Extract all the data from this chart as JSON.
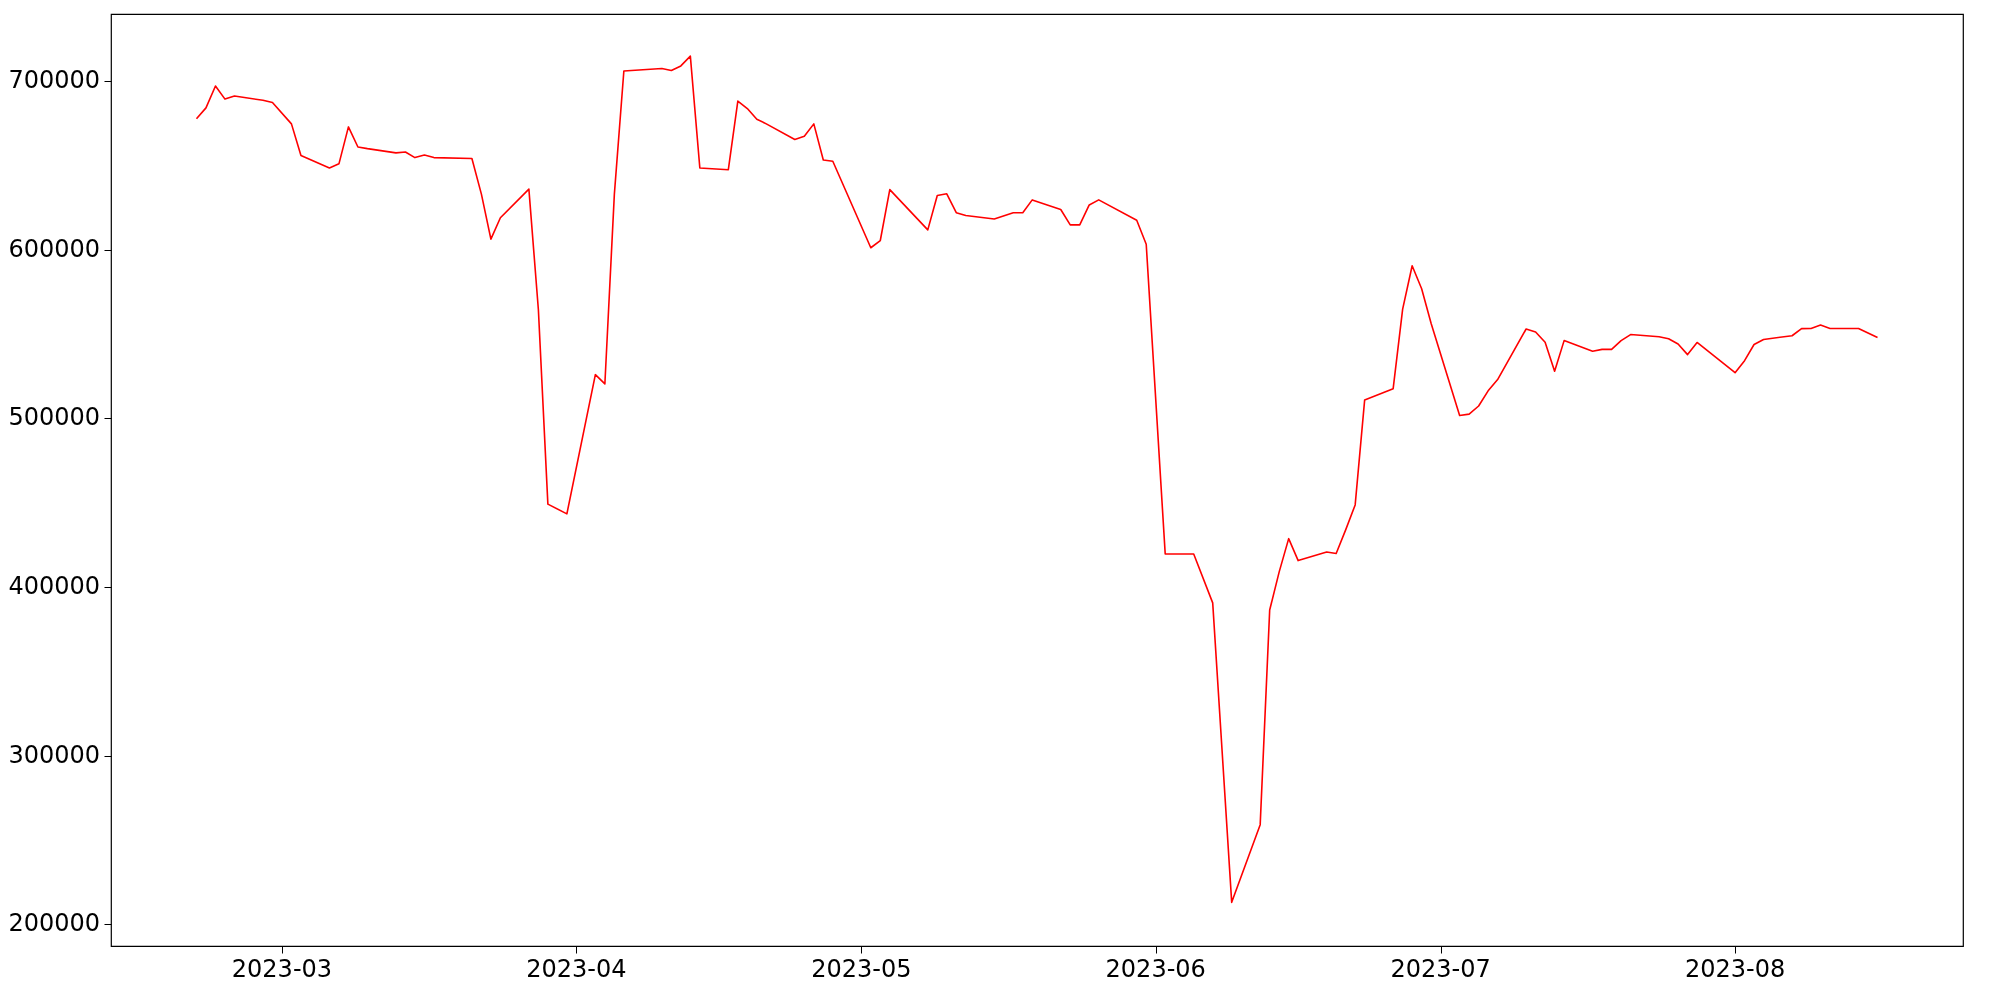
{
  "chart_data": {
    "type": "line",
    "x": [
      "2023-02-20",
      "2023-02-21",
      "2023-02-22",
      "2023-02-23",
      "2023-02-24",
      "2023-02-27",
      "2023-02-28",
      "2023-03-02",
      "2023-03-03",
      "2023-03-06",
      "2023-03-07",
      "2023-03-08",
      "2023-03-09",
      "2023-03-10",
      "2023-03-13",
      "2023-03-14",
      "2023-03-15",
      "2023-03-16",
      "2023-03-17",
      "2023-03-21",
      "2023-03-22",
      "2023-03-23",
      "2023-03-24",
      "2023-03-27",
      "2023-03-28",
      "2023-03-29",
      "2023-03-31",
      "2023-04-03",
      "2023-04-04",
      "2023-04-05",
      "2023-04-06",
      "2023-04-10",
      "2023-04-11",
      "2023-04-12",
      "2023-04-13",
      "2023-04-14",
      "2023-04-17",
      "2023-04-18",
      "2023-04-19",
      "2023-04-20",
      "2023-04-21",
      "2023-04-24",
      "2023-04-25",
      "2023-04-26",
      "2023-04-27",
      "2023-04-28",
      "2023-05-02",
      "2023-05-03",
      "2023-05-04",
      "2023-05-08",
      "2023-05-09",
      "2023-05-10",
      "2023-05-11",
      "2023-05-12",
      "2023-05-15",
      "2023-05-17",
      "2023-05-18",
      "2023-05-19",
      "2023-05-22",
      "2023-05-23",
      "2023-05-24",
      "2023-05-25",
      "2023-05-26",
      "2023-05-30",
      "2023-05-31",
      "2023-06-02",
      "2023-06-05",
      "2023-06-07",
      "2023-06-09",
      "2023-06-12",
      "2023-06-13",
      "2023-06-14",
      "2023-06-15",
      "2023-06-16",
      "2023-06-19",
      "2023-06-20",
      "2023-06-21",
      "2023-06-22",
      "2023-06-23",
      "2023-06-26",
      "2023-06-27",
      "2023-06-28",
      "2023-06-29",
      "2023-06-30",
      "2023-07-03",
      "2023-07-04",
      "2023-07-05",
      "2023-07-06",
      "2023-07-07",
      "2023-07-10",
      "2023-07-11",
      "2023-07-12",
      "2023-07-13",
      "2023-07-14",
      "2023-07-17",
      "2023-07-18",
      "2023-07-19",
      "2023-07-20",
      "2023-07-21",
      "2023-07-24",
      "2023-07-25",
      "2023-07-26",
      "2023-07-27",
      "2023-07-28",
      "2023-08-01",
      "2023-08-02",
      "2023-08-03",
      "2023-08-04",
      "2023-08-07",
      "2023-08-08",
      "2023-08-09",
      "2023-08-10",
      "2023-08-11",
      "2023-08-14",
      "2023-08-16"
    ],
    "series": [
      {
        "color": "#ff0000",
        "values": [
          677800,
          684300,
          697300,
          689500,
          691300,
          688800,
          687500,
          674800,
          656100,
          648600,
          651100,
          673000,
          661100,
          660100,
          657600,
          658100,
          654800,
          656300,
          654800,
          654300,
          633100,
          606400,
          619100,
          636100,
          564500,
          449200,
          443400,
          526000,
          520500,
          633100,
          706200,
          707700,
          706500,
          709200,
          715000,
          648600,
          647600,
          688300,
          683900,
          677600,
          674800,
          665500,
          667400,
          674800,
          653400,
          652600,
          601300,
          605600,
          635800,
          611900,
          632300,
          633300,
          622100,
          620400,
          618400,
          622100,
          622100,
          629700,
          624000,
          614900,
          614900,
          626700,
          629700,
          617600,
          603400,
          419600,
          419600,
          390600,
          212900,
          259000,
          386400,
          409000,
          428700,
          415700,
          420800,
          419900,
          433900,
          448700,
          511000,
          517700,
          564900,
          590600,
          577000,
          556400,
          501800,
          502600,
          507400,
          516400,
          523100,
          553100,
          551300,
          545200,
          528000,
          546200,
          539900,
          541000,
          541000,
          546200,
          549800,
          548500,
          547300,
          544200,
          537900,
          545100,
          527200,
          534300,
          543900,
          546900,
          549100,
          553300,
          553400,
          555400,
          553400,
          553400,
          548000
        ]
      }
    ],
    "xlim": [
      "2023-02-11",
      "2023-08-25"
    ],
    "xticks": [
      "2023-03",
      "2023-04",
      "2023-05",
      "2023-06",
      "2023-07",
      "2023-08"
    ],
    "ylim": [
      187000,
      740000
    ],
    "yticks": [
      200000,
      300000,
      400000,
      500000,
      600000,
      700000
    ],
    "grid": false,
    "legend": false,
    "marker": "none",
    "line_style": "solid"
  }
}
